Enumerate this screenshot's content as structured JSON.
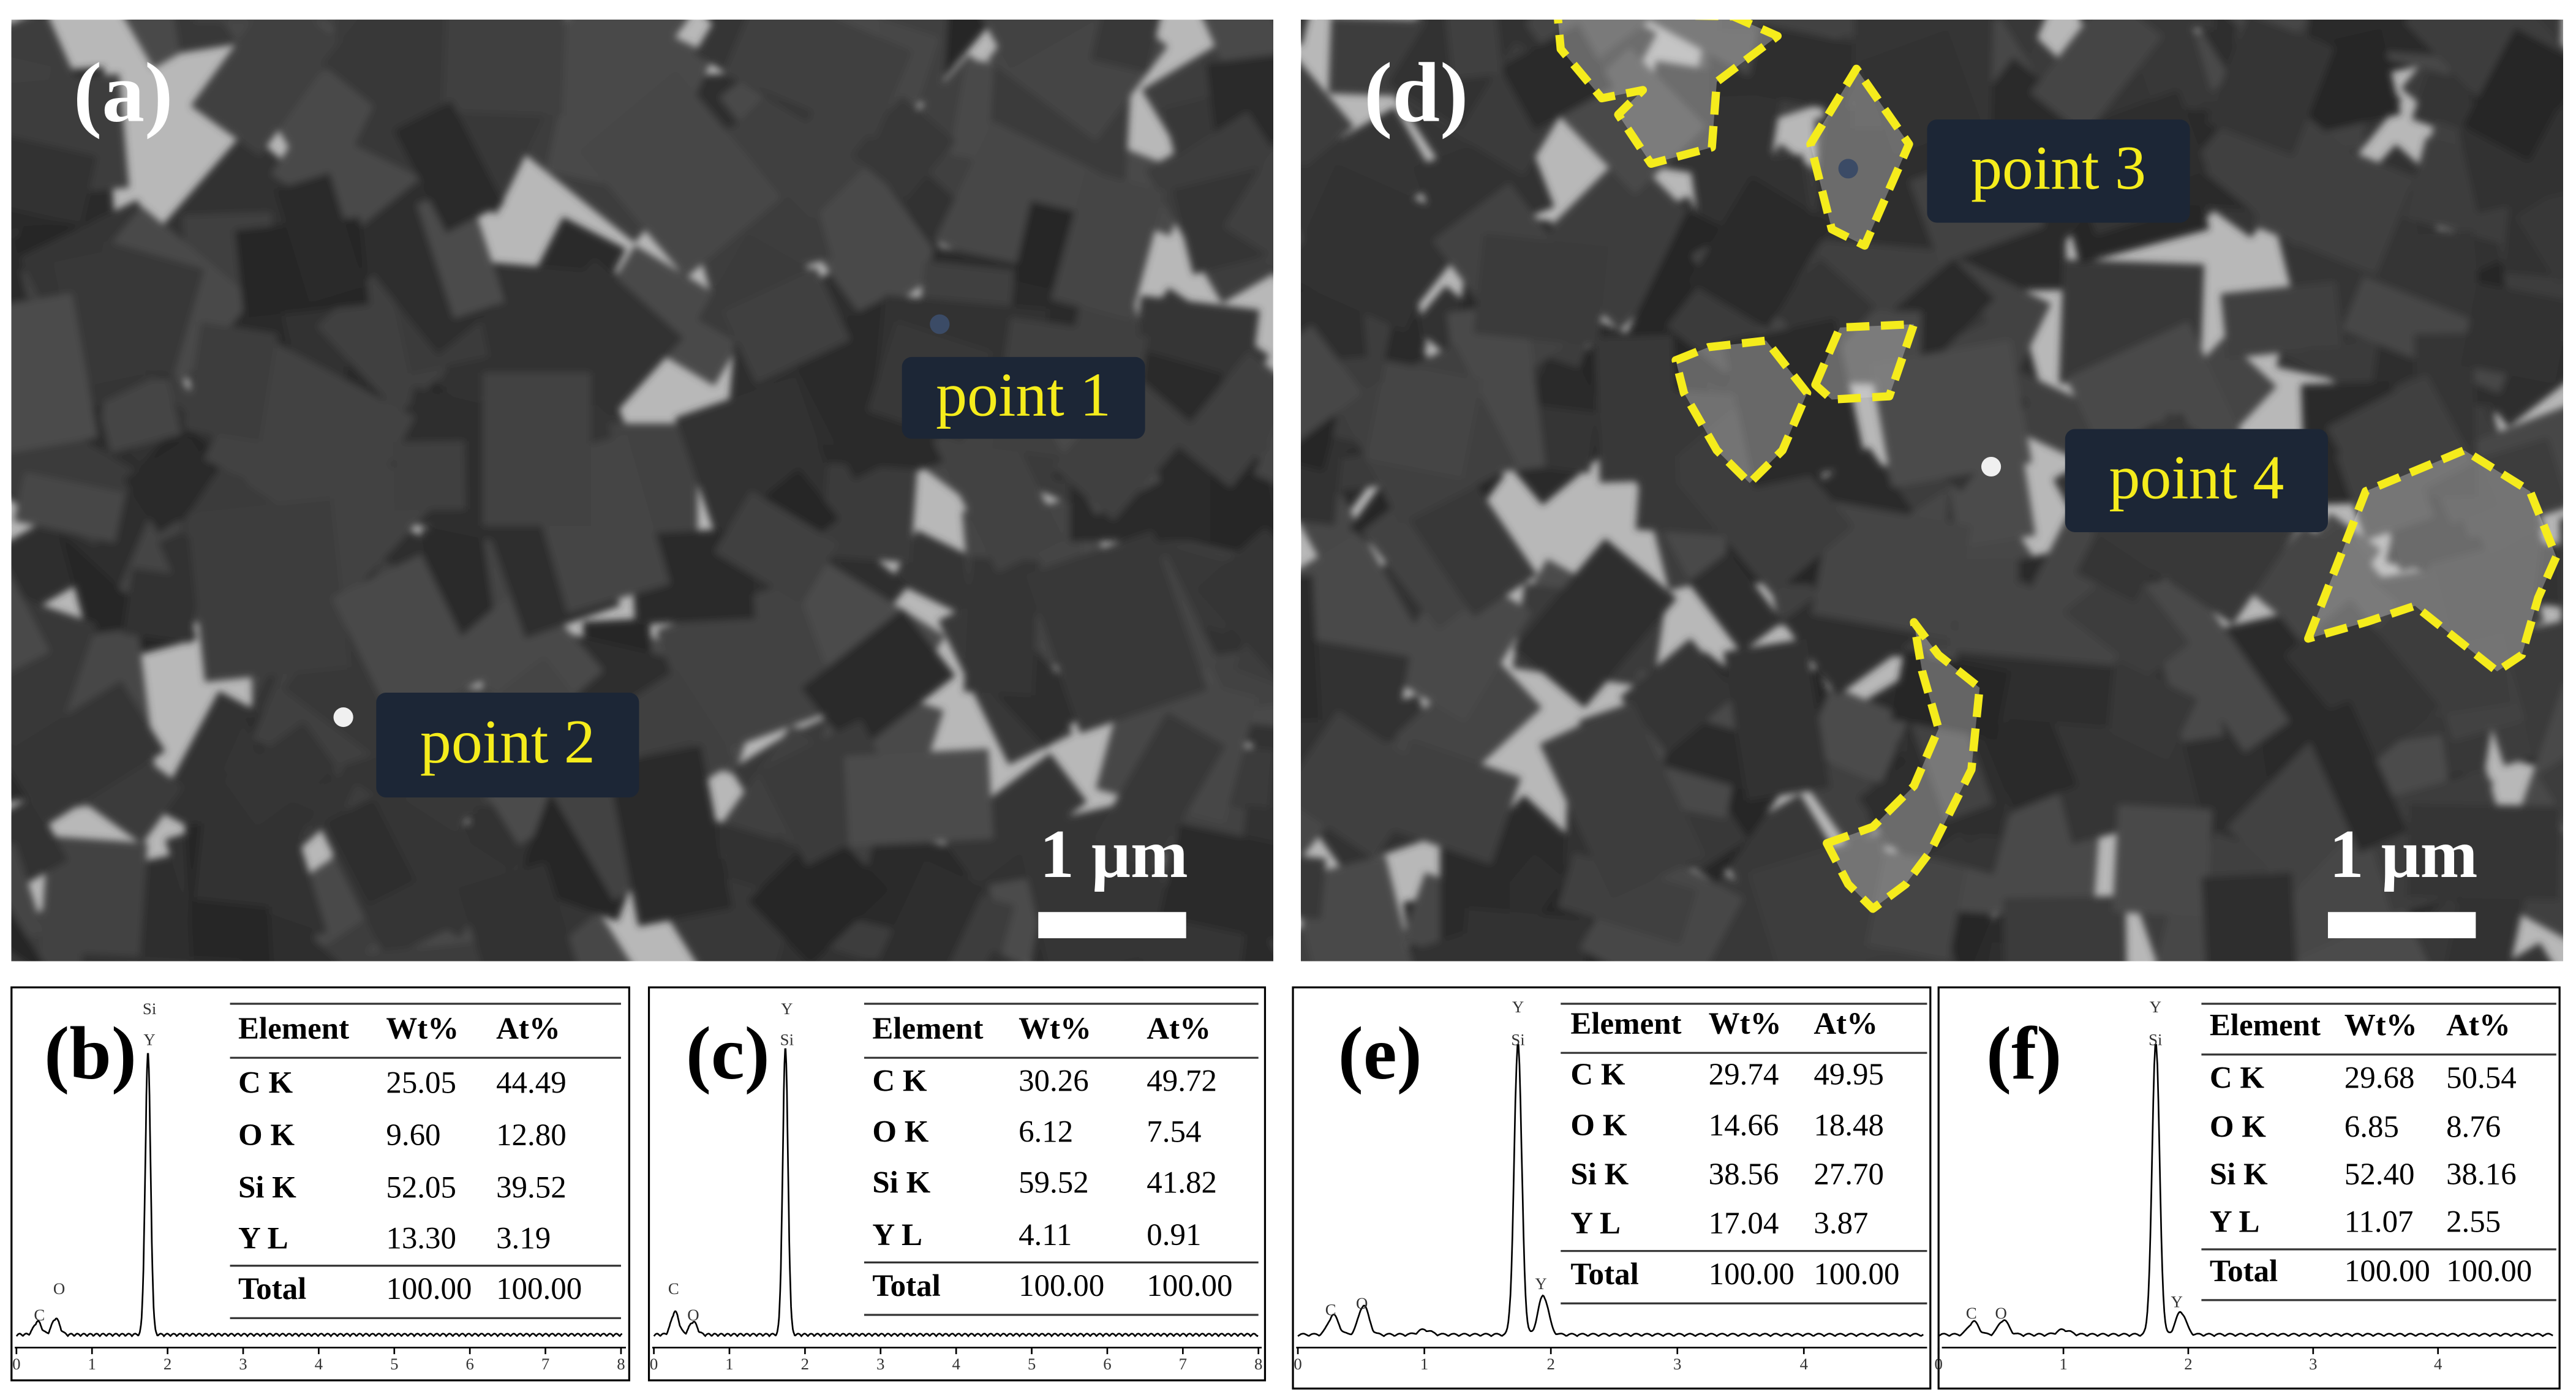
{
  "panels": [
    {
      "label": "(a)",
      "points": [
        "point 1",
        "point 2"
      ],
      "scale_bar": "1 μm"
    },
    {
      "label": "(d)",
      "points": [
        "point 3",
        "point 4"
      ],
      "scale_bar": "1 μm"
    }
  ],
  "spectra": [
    {
      "label": "(b)",
      "peak_labels": [
        "Si",
        "Y",
        "C",
        "O"
      ],
      "x_ticks": [
        "0",
        "1",
        "2",
        "3",
        "4",
        "5",
        "6",
        "7",
        "8"
      ],
      "table": {
        "header": [
          "Element",
          "Wt%",
          "At%"
        ],
        "rows": [
          [
            "C K",
            "25.05",
            "44.49"
          ],
          [
            "O K",
            "9.60",
            "12.80"
          ],
          [
            "Si K",
            "52.05",
            "39.52"
          ],
          [
            "Y L",
            "13.30",
            "3.19"
          ],
          [
            "Total",
            "100.00",
            "100.00"
          ]
        ]
      }
    },
    {
      "label": "(c)",
      "peak_labels": [
        "Y",
        "Si",
        "C",
        "O"
      ],
      "x_ticks": [
        "0",
        "1",
        "2",
        "3",
        "4",
        "5",
        "6",
        "7",
        "8"
      ],
      "table": {
        "header": [
          "Element",
          "Wt%",
          "At%"
        ],
        "rows": [
          [
            "C K",
            "30.26",
            "49.72"
          ],
          [
            "O K",
            "6.12",
            "7.54"
          ],
          [
            "Si K",
            "59.52",
            "41.82"
          ],
          [
            "Y L",
            "4.11",
            "0.91"
          ],
          [
            "Total",
            "100.00",
            "100.00"
          ]
        ]
      }
    },
    {
      "label": "(e)",
      "peak_labels": [
        "Y",
        "Si",
        "C",
        "O",
        "Y"
      ],
      "x_ticks": [
        "0",
        "1",
        "2",
        "3",
        "4"
      ],
      "table": {
        "header": [
          "Element",
          "Wt%",
          "At%"
        ],
        "rows": [
          [
            "C K",
            "29.74",
            "49.95"
          ],
          [
            "O K",
            "14.66",
            "18.48"
          ],
          [
            "Si K",
            "38.56",
            "27.70"
          ],
          [
            "Y L",
            "17.04",
            "3.87"
          ],
          [
            "Total",
            "100.00",
            "100.00"
          ]
        ]
      }
    },
    {
      "label": "(f)",
      "peak_labels": [
        "Y",
        "Si",
        "C",
        "O",
        "Y"
      ],
      "x_ticks": [
        "0",
        "1",
        "2",
        "3",
        "4"
      ],
      "table": {
        "header": [
          "Element",
          "Wt%",
          "At%"
        ],
        "rows": [
          [
            "C K",
            "29.68",
            "50.54"
          ],
          [
            "O K",
            "6.85",
            "8.76"
          ],
          [
            "Si K",
            "52.40",
            "38.16"
          ],
          [
            "Y L",
            "11.07",
            "2.55"
          ],
          [
            "Total",
            "100.00",
            "100.00"
          ]
        ]
      }
    }
  ]
}
